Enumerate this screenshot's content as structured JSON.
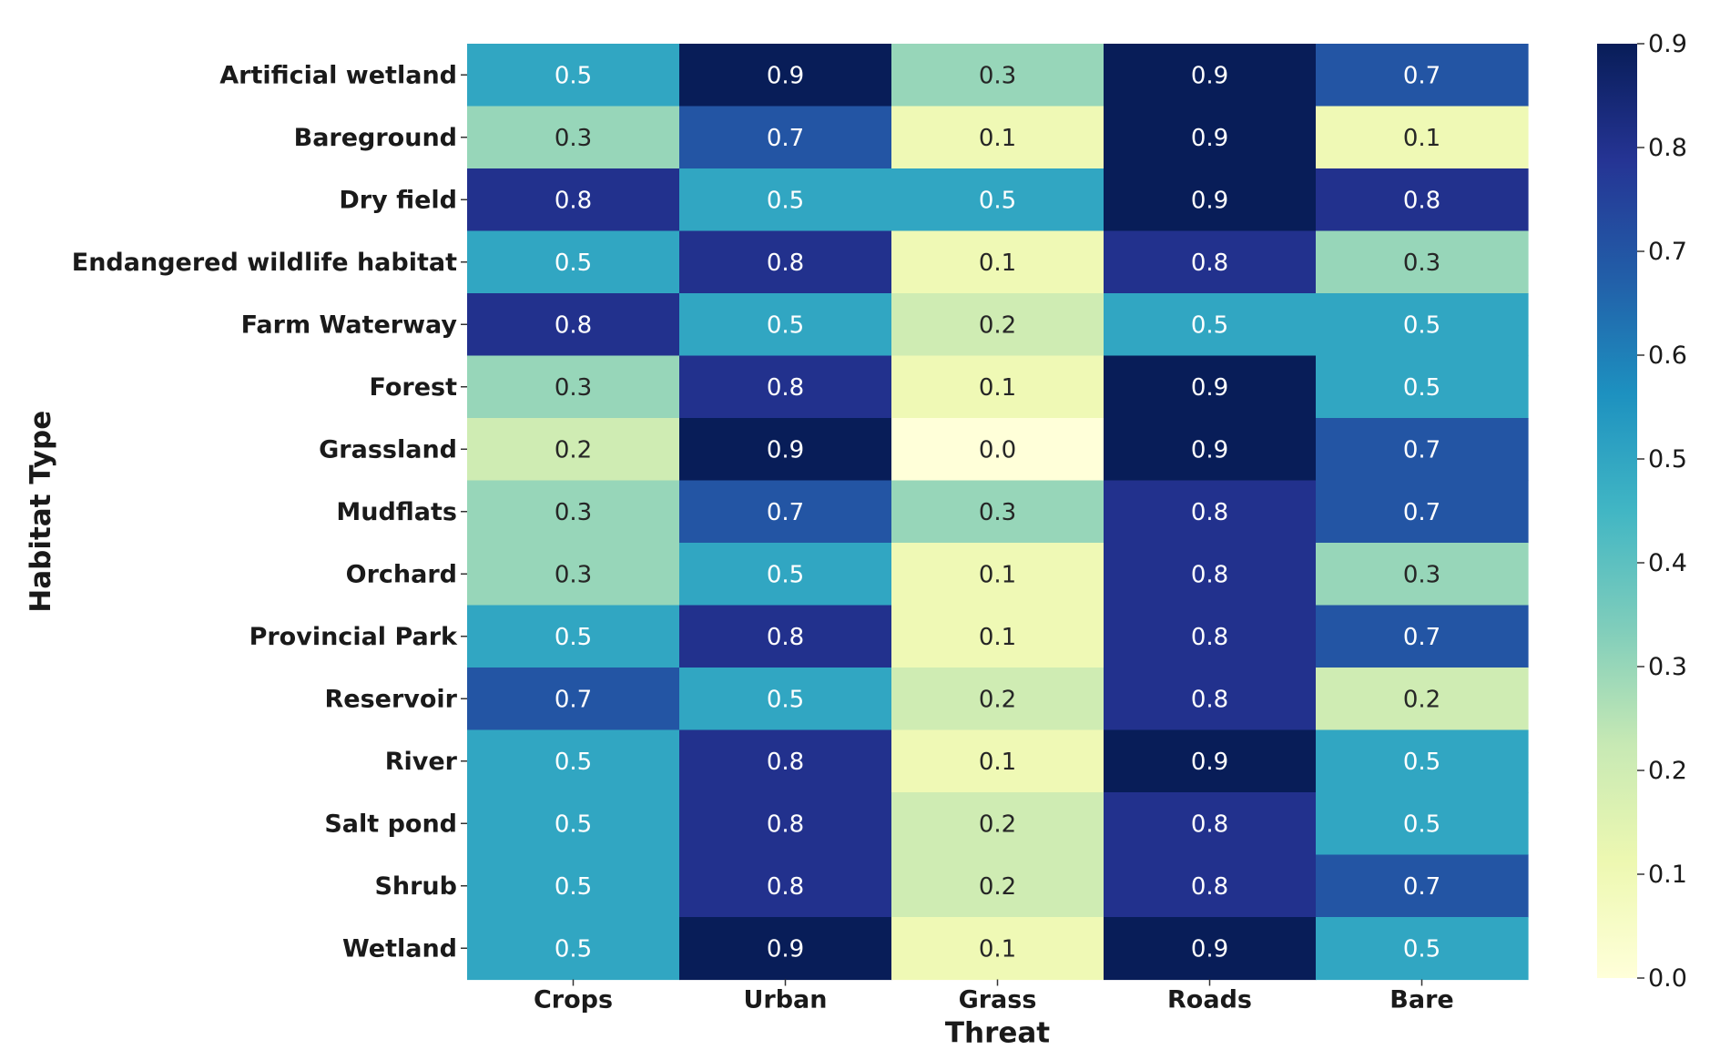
{
  "chart_data": {
    "type": "heatmap",
    "xlabel": "Threat",
    "ylabel": "Habitat Type",
    "columns": [
      "Crops",
      "Urban",
      "Grass",
      "Roads",
      "Bare"
    ],
    "rows": [
      "Artificial wetland",
      "Bareground",
      "Dry field",
      "Endangered wildlife habitat",
      "Farm Waterway",
      "Forest",
      "Grassland",
      "Mudflats",
      "Orchard",
      "Provincial Park",
      "Reservoir",
      "River",
      "Salt pond",
      "Shrub",
      "Wetland"
    ],
    "values": [
      [
        0.5,
        0.9,
        0.3,
        0.9,
        0.7
      ],
      [
        0.3,
        0.7,
        0.1,
        0.9,
        0.1
      ],
      [
        0.8,
        0.5,
        0.5,
        0.9,
        0.8
      ],
      [
        0.5,
        0.8,
        0.1,
        0.8,
        0.3
      ],
      [
        0.8,
        0.5,
        0.2,
        0.5,
        0.5
      ],
      [
        0.3,
        0.8,
        0.1,
        0.9,
        0.5
      ],
      [
        0.2,
        0.9,
        0.0,
        0.9,
        0.7
      ],
      [
        0.3,
        0.7,
        0.3,
        0.8,
        0.7
      ],
      [
        0.3,
        0.5,
        0.1,
        0.8,
        0.3
      ],
      [
        0.5,
        0.8,
        0.1,
        0.8,
        0.7
      ],
      [
        0.7,
        0.5,
        0.2,
        0.8,
        0.2
      ],
      [
        0.5,
        0.8,
        0.1,
        0.9,
        0.5
      ],
      [
        0.5,
        0.8,
        0.2,
        0.8,
        0.5
      ],
      [
        0.5,
        0.8,
        0.2,
        0.8,
        0.7
      ],
      [
        0.5,
        0.9,
        0.1,
        0.9,
        0.5
      ]
    ],
    "value_labels": [
      [
        "0.5",
        "0.9",
        "0.3",
        "0.9",
        "0.7"
      ],
      [
        "0.3",
        "0.7",
        "0.1",
        "0.9",
        "0.1"
      ],
      [
        "0.8",
        "0.5",
        "0.5",
        "0.9",
        "0.8"
      ],
      [
        "0.5",
        "0.8",
        "0.1",
        "0.8",
        "0.3"
      ],
      [
        "0.8",
        "0.5",
        "0.2",
        "0.5",
        "0.5"
      ],
      [
        "0.3",
        "0.8",
        "0.1",
        "0.9",
        "0.5"
      ],
      [
        "0.2",
        "0.9",
        "0.0",
        "0.9",
        "0.7"
      ],
      [
        "0.3",
        "0.7",
        "0.3",
        "0.8",
        "0.7"
      ],
      [
        "0.3",
        "0.5",
        "0.1",
        "0.8",
        "0.3"
      ],
      [
        "0.5",
        "0.8",
        "0.1",
        "0.8",
        "0.7"
      ],
      [
        "0.7",
        "0.5",
        "0.2",
        "0.8",
        "0.2"
      ],
      [
        "0.5",
        "0.8",
        "0.1",
        "0.9",
        "0.5"
      ],
      [
        "0.5",
        "0.8",
        "0.2",
        "0.8",
        "0.5"
      ],
      [
        "0.5",
        "0.8",
        "0.2",
        "0.8",
        "0.7"
      ],
      [
        "0.5",
        "0.9",
        "0.1",
        "0.9",
        "0.5"
      ]
    ],
    "colorbar": {
      "min": 0.0,
      "max": 0.9,
      "ticks": [
        0.0,
        0.1,
        0.2,
        0.3,
        0.4,
        0.5,
        0.6,
        0.7,
        0.8,
        0.9
      ],
      "tick_labels": [
        "0.0",
        "0.1",
        "0.2",
        "0.3",
        "0.4",
        "0.5",
        "0.6",
        "0.7",
        "0.8",
        "0.9"
      ]
    },
    "colormap": {
      "name": "YlGnBu",
      "stops": [
        "#ffffd9",
        "#edf8b1",
        "#c7e9b4",
        "#7fcdbb",
        "#41b6c4",
        "#1d91c0",
        "#225ea8",
        "#253494",
        "#081d58"
      ]
    }
  }
}
